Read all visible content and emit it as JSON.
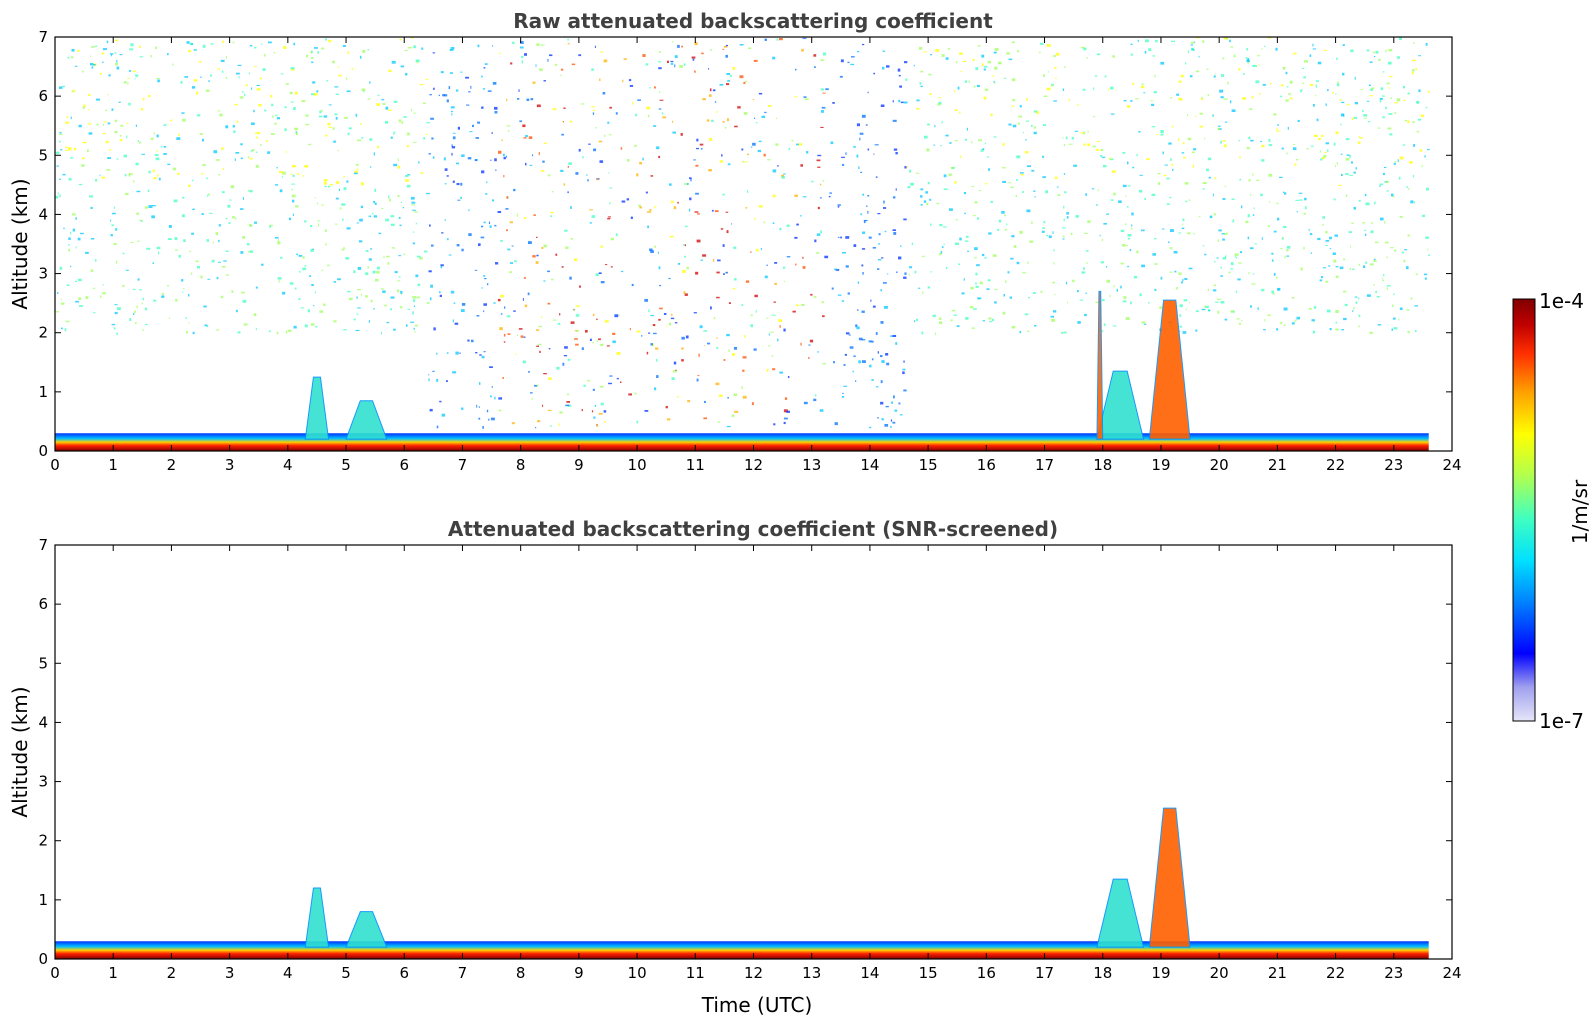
{
  "chart_data": [
    {
      "type": "heatmap",
      "title": "Raw attenuated backscattering coefficient",
      "xlabel": "",
      "ylabel": "Altitude (km)",
      "xlim": [
        0,
        24
      ],
      "ylim": [
        0,
        7
      ],
      "xticks": [
        0,
        1,
        2,
        3,
        4,
        5,
        6,
        7,
        8,
        9,
        10,
        11,
        12,
        13,
        14,
        15,
        16,
        17,
        18,
        19,
        20,
        21,
        22,
        23,
        24
      ],
      "yticks": [
        0,
        1,
        2,
        3,
        4,
        5,
        6,
        7
      ],
      "data_end_time": 23.6,
      "features": [
        {
          "name": "boundary-layer",
          "t_start": 0,
          "t_end": 23.6,
          "alt_top_km": 0.3
        },
        {
          "name": "convective-plume",
          "t_start": 4.3,
          "t_end": 4.7,
          "alt_top_km": 1.25
        },
        {
          "name": "convective-plume",
          "t_start": 5.0,
          "t_end": 5.7,
          "alt_top_km": 0.85
        },
        {
          "name": "elevated-aerosol",
          "t_start": 17.9,
          "t_end": 18.7,
          "alt_top_km": 1.35
        },
        {
          "name": "cloud",
          "t_start": 18.8,
          "t_end": 19.5,
          "alt_top_km": 2.55
        },
        {
          "name": "cloud",
          "t_start": 17.9,
          "t_end": 18.0,
          "alt_top_km": 2.7
        },
        {
          "name": "daytime-noise",
          "t_start": 6.4,
          "t_end": 14.6,
          "alt_top_km": 7
        }
      ]
    },
    {
      "type": "heatmap",
      "title": "Attenuated backscattering coefficient (SNR-screened)",
      "xlabel": "Time (UTC)",
      "ylabel": "Altitude (km)",
      "xlim": [
        0,
        24
      ],
      "ylim": [
        0,
        7
      ],
      "xticks": [
        0,
        1,
        2,
        3,
        4,
        5,
        6,
        7,
        8,
        9,
        10,
        11,
        12,
        13,
        14,
        15,
        16,
        17,
        18,
        19,
        20,
        21,
        22,
        23,
        24
      ],
      "yticks": [
        0,
        1,
        2,
        3,
        4,
        5,
        6,
        7
      ],
      "data_end_time": 23.6,
      "features": [
        {
          "name": "boundary-layer",
          "t_start": 0,
          "t_end": 23.6,
          "alt_top_km": 0.3
        },
        {
          "name": "convective-plume",
          "t_start": 4.3,
          "t_end": 4.7,
          "alt_top_km": 1.2
        },
        {
          "name": "convective-plume",
          "t_start": 5.0,
          "t_end": 5.7,
          "alt_top_km": 0.8
        },
        {
          "name": "elevated-aerosol",
          "t_start": 17.9,
          "t_end": 18.7,
          "alt_top_km": 1.35
        },
        {
          "name": "cloud",
          "t_start": 18.8,
          "t_end": 19.5,
          "alt_top_km": 2.55
        }
      ]
    }
  ],
  "colorbar": {
    "max_label": "1e-4",
    "min_label": "1e-7",
    "unit_label": "1/m/sr",
    "colormap": [
      "#e6e6f8",
      "#a0a0ef",
      "#0000ff",
      "#0080ff",
      "#00e0ff",
      "#40ffc0",
      "#b0ff50",
      "#ffff00",
      "#ffa000",
      "#ff3000",
      "#c00000",
      "#800000"
    ]
  }
}
